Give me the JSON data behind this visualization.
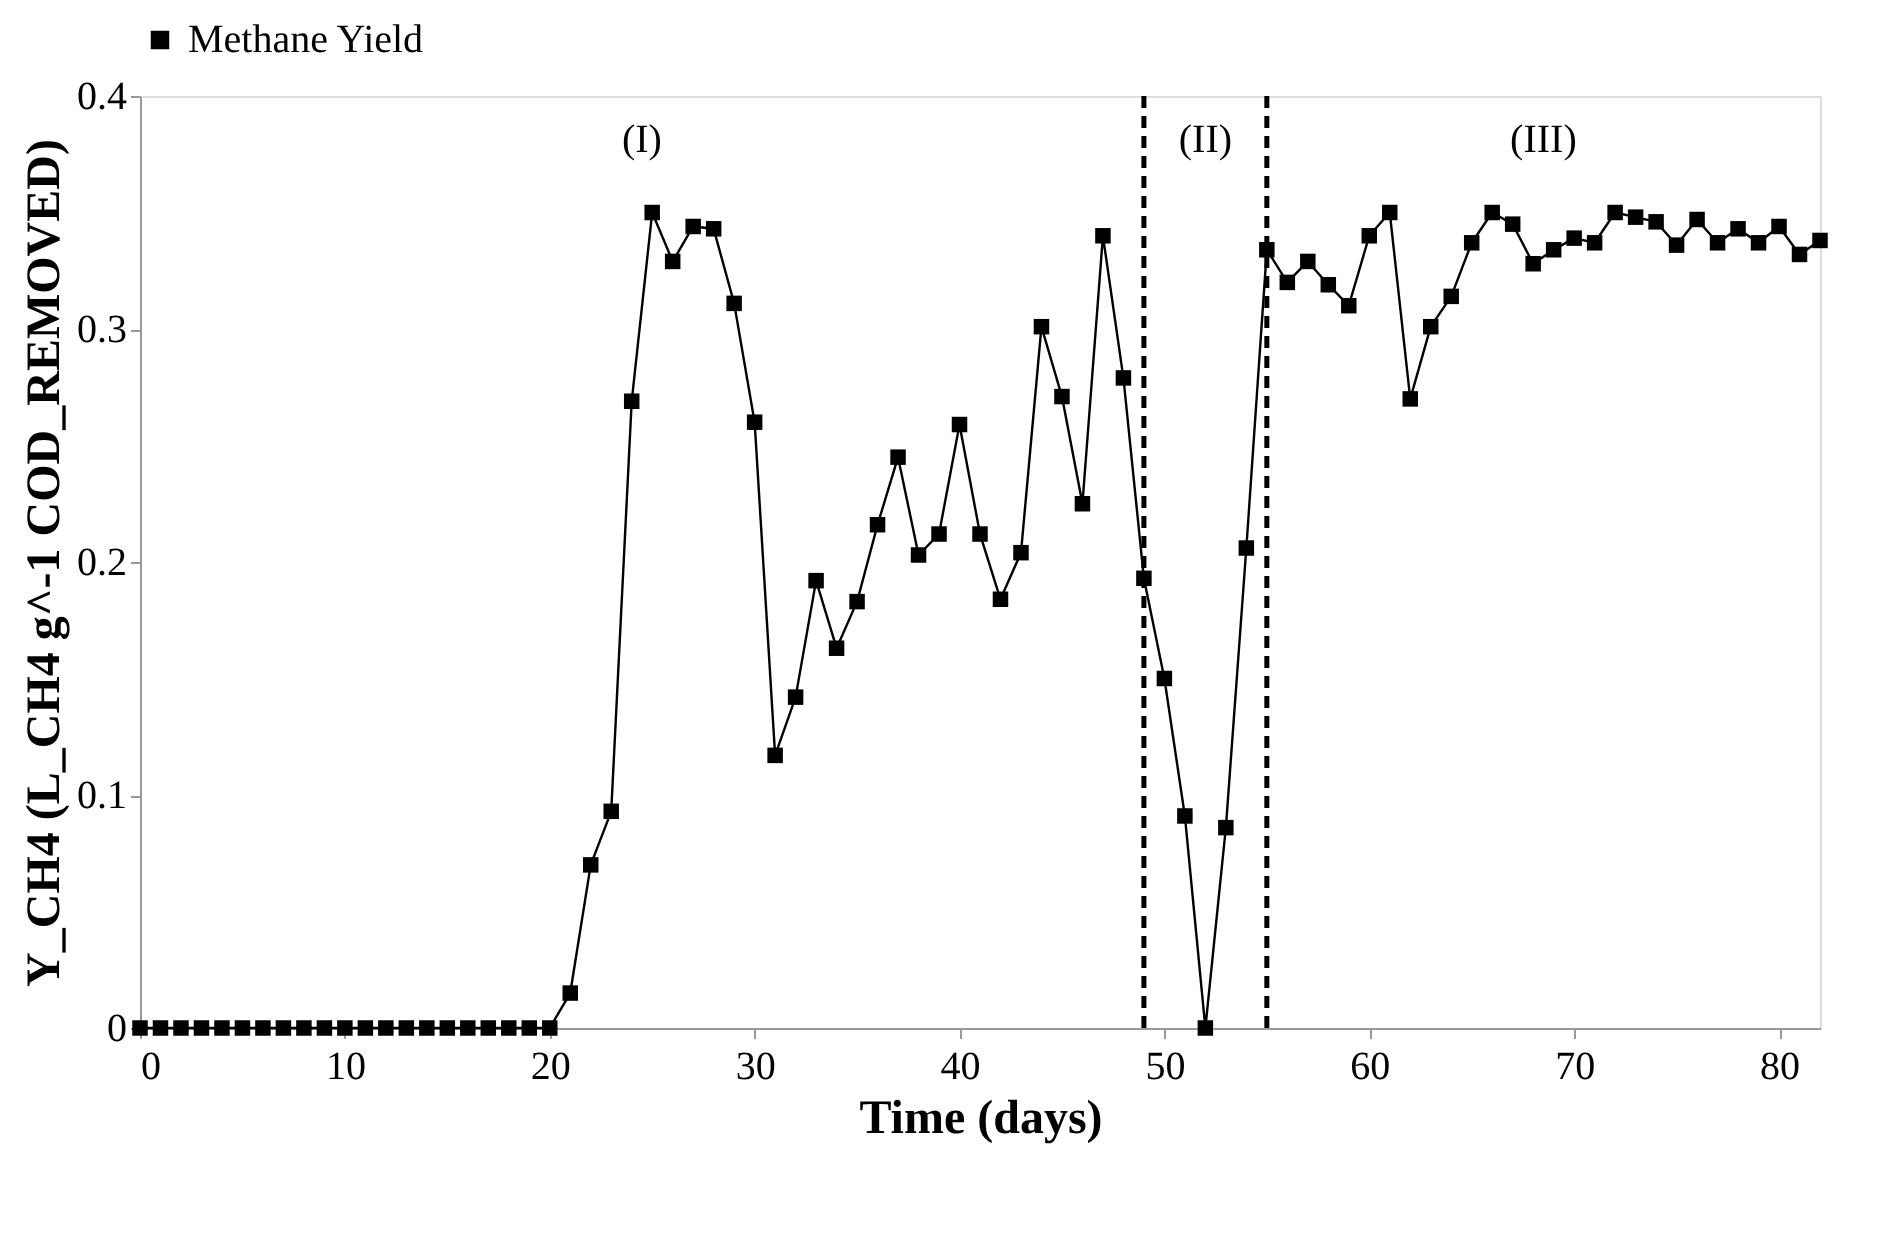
{
  "chart_data": {
    "type": "line",
    "xlabel": "Time (days)",
    "ylabel": "Y_CH4 (L_CH4 g^-1 COD_REMOVED)",
    "x": [
      0,
      1,
      2,
      3,
      4,
      5,
      6,
      7,
      8,
      9,
      10,
      11,
      12,
      13,
      14,
      15,
      16,
      17,
      18,
      19,
      20,
      21,
      22,
      23,
      24,
      25,
      26,
      27,
      28,
      29,
      30,
      31,
      32,
      33,
      34,
      35,
      36,
      37,
      38,
      39,
      40,
      41,
      42,
      43,
      44,
      45,
      46,
      47,
      48,
      49,
      50,
      51,
      52,
      53,
      54,
      55,
      56,
      57,
      58,
      59,
      60,
      61,
      62,
      63,
      64,
      65,
      66,
      67,
      68,
      69,
      70,
      71,
      72,
      73,
      74,
      75,
      76,
      77,
      78,
      79,
      80,
      81,
      82
    ],
    "series": [
      {
        "name": "Methane Yield",
        "color": "#000000",
        "values": [
          0,
          0,
          0,
          0,
          0,
          0,
          0,
          0,
          0,
          0,
          0,
          0,
          0,
          0,
          0,
          0,
          0,
          0,
          0,
          0,
          0,
          0.015,
          0.07,
          0.093,
          0.269,
          0.35,
          0.329,
          0.344,
          0.343,
          0.311,
          0.26,
          0.117,
          0.142,
          0.192,
          0.163,
          0.183,
          0.216,
          0.245,
          0.203,
          0.212,
          0.259,
          0.212,
          0.184,
          0.204,
          0.301,
          0.271,
          0.225,
          0.34,
          0.279,
          0.193,
          0.15,
          0.091,
          0,
          0.086,
          0.206,
          0.334,
          0.32,
          0.329,
          0.319,
          0.31,
          0.34,
          0.35,
          0.27,
          0.301,
          0.314,
          0.337,
          0.35,
          0.345,
          0.328,
          0.334,
          0.339,
          0.337,
          0.35,
          0.348,
          0.346,
          0.336,
          0.347,
          0.337,
          0.343,
          0.337,
          0.344,
          0.332,
          0.338
        ]
      }
    ],
    "xlim": [
      0,
      82
    ],
    "xticks": [
      0,
      10,
      20,
      30,
      40,
      50,
      60,
      70,
      80
    ],
    "ylim": [
      0,
      0.4
    ],
    "yticks": [
      0,
      0.1,
      0.2,
      0.3,
      0.4
    ],
    "ref_lines": [
      {
        "axis": "x",
        "value": 49,
        "color": "#000000",
        "line_style": "dashed"
      },
      {
        "axis": "x",
        "value": 55,
        "color": "#000000",
        "line_style": "dashed"
      }
    ],
    "annotations": [
      "(I)",
      "(II)",
      "(III)"
    ],
    "marker": "square",
    "line_style": "solid",
    "grid": false,
    "legend": "top"
  }
}
